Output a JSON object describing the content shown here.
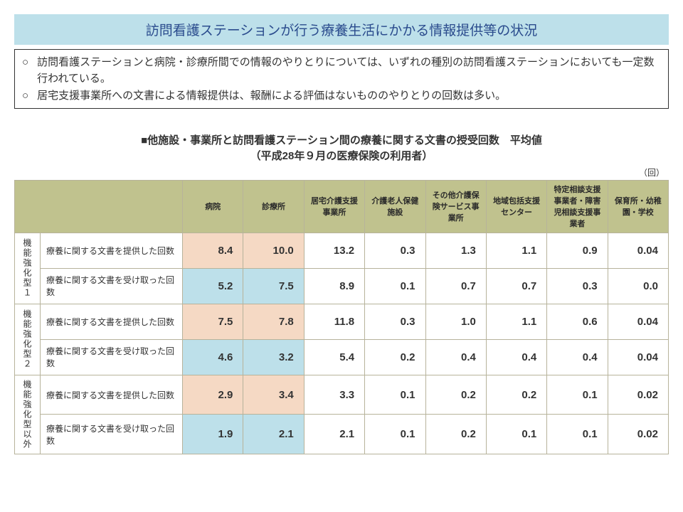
{
  "colors": {
    "title_bg": "#bde0ea",
    "title_text": "#2a4b8d",
    "header_bg": "#c0c28e",
    "provided_bg": "#f5d9c4",
    "received_bg": "#bde0ea"
  },
  "title": "訪問看護ステーションが行う療養生活にかかる情報提供等の状況",
  "bullets": [
    "訪問看護ステーションと病院・診療所間での情報のやりとりについては、いずれの種別の訪問看護ステーションにおいても一定数行われている。",
    "居宅支援事業所への文書による情報提供は、報酬による評価はないもののやりとりの回数は多い。"
  ],
  "bullet_mark": "○",
  "table_title_line1": "■他施設・事業所と訪問看護ステーション間の療養に関する文書の授受回数　平均値",
  "table_title_line2": "（平成28年９月の医療保険の利用者）",
  "unit": "（回）",
  "headers": [
    "病院",
    "診療所",
    "居宅介護支援事業所",
    "介護老人保健施設",
    "その他介護保険サービス事業所",
    "地域包括支援センター",
    "特定相談支援事業者・障害児相談支援事業者",
    "保育所・幼稚園・学校"
  ],
  "highlight_cols": [
    0,
    1
  ],
  "row_labels": {
    "provided": "療養に関する文書を提供した回数",
    "received": "療養に関する文書を受け取った回数"
  },
  "groups": [
    {
      "name": "機能強化型１",
      "rows": [
        {
          "type": "provided",
          "values": [
            "8.4",
            "10.0",
            "13.2",
            "0.3",
            "1.3",
            "1.1",
            "0.9",
            "0.04"
          ]
        },
        {
          "type": "received",
          "values": [
            "5.2",
            "7.5",
            "8.9",
            "0.1",
            "0.7",
            "0.7",
            "0.3",
            "0.0"
          ]
        }
      ]
    },
    {
      "name": "機能強化型２",
      "rows": [
        {
          "type": "provided",
          "values": [
            "7.5",
            "7.8",
            "11.8",
            "0.3",
            "1.0",
            "1.1",
            "0.6",
            "0.04"
          ]
        },
        {
          "type": "received",
          "values": [
            "4.6",
            "3.2",
            "5.4",
            "0.2",
            "0.4",
            "0.4",
            "0.4",
            "0.04"
          ]
        }
      ]
    },
    {
      "name": "機能強化型以外",
      "rows": [
        {
          "type": "provided",
          "values": [
            "2.9",
            "3.4",
            "3.3",
            "0.1",
            "0.2",
            "0.2",
            "0.1",
            "0.02"
          ]
        },
        {
          "type": "received",
          "values": [
            "1.9",
            "2.1",
            "2.1",
            "0.1",
            "0.2",
            "0.1",
            "0.1",
            "0.02"
          ]
        }
      ]
    }
  ]
}
